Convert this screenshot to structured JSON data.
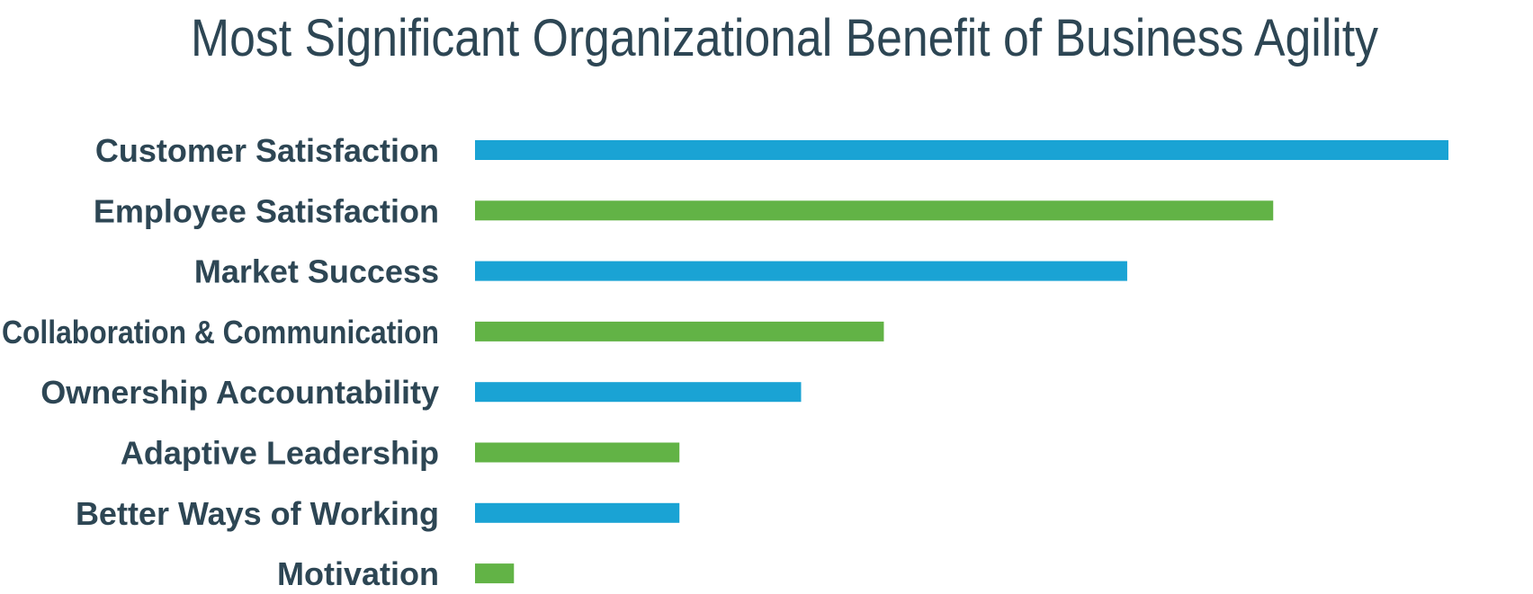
{
  "chart_data": {
    "type": "bar",
    "orientation": "horizontal",
    "title": "Most Significant Organizational Benefit of Business Agility",
    "xlabel": "",
    "ylabel": "",
    "grid": false,
    "legend": "none",
    "xlim": [
      0,
      100
    ],
    "categories": [
      "Customer Satisfaction",
      "Employee Satisfaction",
      "Market Success",
      "Collaboration & Communication",
      "Ownership Accountability",
      "Adaptive Leadership",
      "Better Ways of Working",
      "Motivation"
    ],
    "values": [
      100,
      82,
      67,
      42,
      33.5,
      21,
      21,
      4
    ],
    "colors": [
      "#1aa3d4",
      "#62b346",
      "#1aa3d4",
      "#62b346",
      "#1aa3d4",
      "#62b346",
      "#1aa3d4",
      "#62b346"
    ]
  }
}
